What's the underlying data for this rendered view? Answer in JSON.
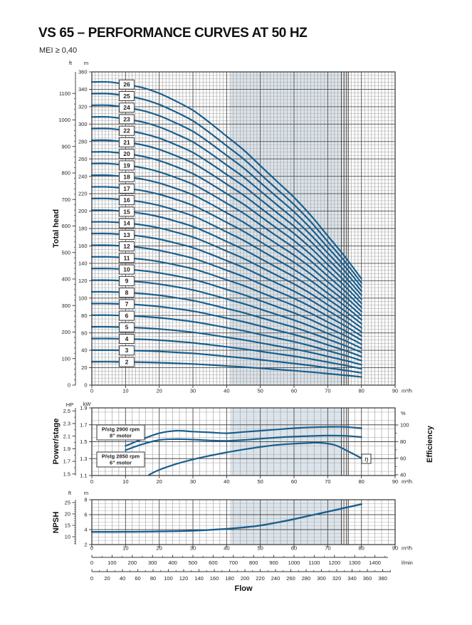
{
  "header": {
    "title": "VS 65 – PERFORMANCE CURVES AT 50 HZ",
    "mei_note": "MEI ≥ 0,40"
  },
  "colors": {
    "curve": "#185f8e",
    "band": "#dce4eb",
    "grid_minor_v": "#9a9a9a",
    "grid_minor_h": "#b2b2b2",
    "grid_major": "#4d4d4d",
    "frame": "#333333",
    "text": "#1f1f1f",
    "box_border": "#3a3a3a",
    "box_fill": "#ffffff"
  },
  "operating_band_m3h": [
    41,
    74.2
  ],
  "limit_lines_m3h": [
    74.1,
    74.8,
    75.5,
    76.1
  ],
  "flow_axis": {
    "label": "Flow",
    "m3h_unit": "m³/h",
    "m3h_ticks": [
      0,
      10,
      20,
      30,
      40,
      50,
      60,
      70,
      80,
      90
    ],
    "lmin_unit": "l/min",
    "lmin_ticks": [
      0,
      100,
      200,
      300,
      400,
      500,
      600,
      700,
      800,
      900,
      1000,
      1100,
      1200,
      1300,
      1400
    ],
    "usgpm_ticks": [
      0,
      20,
      40,
      60,
      80,
      100,
      120,
      140,
      160,
      180,
      200,
      220,
      240,
      260,
      280,
      300,
      320,
      340,
      360,
      380
    ]
  },
  "chart_data": [
    {
      "id": "total_head",
      "type": "line",
      "ylabel": "Total head",
      "xlabel": "Flow",
      "x_range_m3h": [
        0,
        90
      ],
      "y_m": {
        "unit": "m",
        "range": [
          0,
          360
        ],
        "ticks": [
          360,
          340,
          320,
          300,
          280,
          260,
          240,
          220,
          200,
          180,
          160,
          140,
          120,
          100,
          80,
          60,
          40,
          20,
          0
        ]
      },
      "y_ft": {
        "unit": "ft",
        "ticks": [
          1100,
          1000,
          900,
          800,
          700,
          600,
          500,
          400,
          300,
          200,
          100,
          0
        ]
      },
      "stages": [
        2,
        3,
        4,
        5,
        6,
        7,
        8,
        9,
        10,
        11,
        12,
        13,
        14,
        15,
        16,
        17,
        18,
        19,
        20,
        21,
        22,
        23,
        24,
        25,
        26
      ],
      "stage_label_at_m3h": 10.4,
      "flow_m3h": [
        0,
        5,
        10,
        15,
        20,
        25,
        30,
        35,
        40,
        45,
        50,
        55,
        60,
        65,
        70,
        75,
        80
      ],
      "head_per_stage_m": [
        13.4,
        13.4,
        13.3,
        13.15,
        12.9,
        12.55,
        12.15,
        11.6,
        11.0,
        10.4,
        9.7,
        9.0,
        8.3,
        7.5,
        6.6,
        5.7,
        4.7
      ],
      "note": "curve for n stages = n × head_per_stage_m"
    },
    {
      "id": "power_per_stage",
      "type": "line",
      "ylabel": "Power/stage",
      "y_kw": {
        "unit": "kW",
        "range": [
          1.1,
          1.9
        ],
        "ticks": [
          1.9,
          1.7,
          1.5,
          1.3,
          1.1
        ]
      },
      "y_hp": {
        "unit": "HP",
        "ticks": [
          2.5,
          2.3,
          2.1,
          1.9,
          1.7,
          1.5
        ]
      },
      "series": [
        {
          "name": "P/stg 2900 rpm 8\" motor",
          "box_lines": [
            "P/stg 2900 rpm",
            "8\" motor"
          ],
          "flow_m3h": [
            10,
            15,
            20,
            25,
            30,
            35,
            40,
            45,
            50,
            55,
            60,
            65,
            70,
            75,
            80
          ],
          "kw": [
            1.45,
            1.53,
            1.6,
            1.63,
            1.62,
            1.61,
            1.6,
            1.615,
            1.63,
            1.645,
            1.66,
            1.67,
            1.675,
            1.675,
            1.66
          ]
        },
        {
          "name": "P/stg 2850 rpm 6\" motor",
          "box_lines": [
            "P/stg 2850 rpm",
            "6\" motor"
          ],
          "flow_m3h": [
            10,
            15,
            20,
            25,
            30,
            35,
            40,
            45,
            50,
            55,
            60,
            65,
            70,
            75,
            80
          ],
          "kw": [
            1.4,
            1.47,
            1.52,
            1.53,
            1.525,
            1.515,
            1.51,
            1.52,
            1.535,
            1.55,
            1.56,
            1.567,
            1.572,
            1.57,
            1.555
          ]
        }
      ],
      "efficiency": {
        "label": "Efficiency",
        "unit": "%",
        "symbol": "η",
        "range": [
          40,
          100
        ],
        "ticks": [
          100,
          80,
          60,
          40
        ],
        "flow_m3h": [
          17,
          20,
          25,
          30,
          35,
          40,
          45,
          50,
          55,
          60,
          65,
          68,
          72,
          76,
          80
        ],
        "pct": [
          40,
          46,
          53,
          58.5,
          63,
          67,
          70.5,
          73.5,
          76,
          77.5,
          78.5,
          78.5,
          76,
          68.5,
          60
        ]
      }
    },
    {
      "id": "npsh",
      "type": "line",
      "ylabel": "NPSH",
      "y_m": {
        "unit": "m",
        "range": [
          2,
          8
        ],
        "ticks": [
          8,
          6,
          4,
          2
        ]
      },
      "y_ft": {
        "unit": "ft",
        "ticks": [
          25,
          20,
          15,
          10
        ]
      },
      "flow_m3h": [
        0,
        10,
        20,
        30,
        40,
        45,
        50,
        55,
        60,
        65,
        70,
        75,
        80
      ],
      "npsh_m": [
        3.7,
        3.7,
        3.75,
        3.85,
        4.1,
        4.3,
        4.55,
        4.95,
        5.4,
        5.9,
        6.4,
        6.9,
        7.4
      ]
    }
  ]
}
